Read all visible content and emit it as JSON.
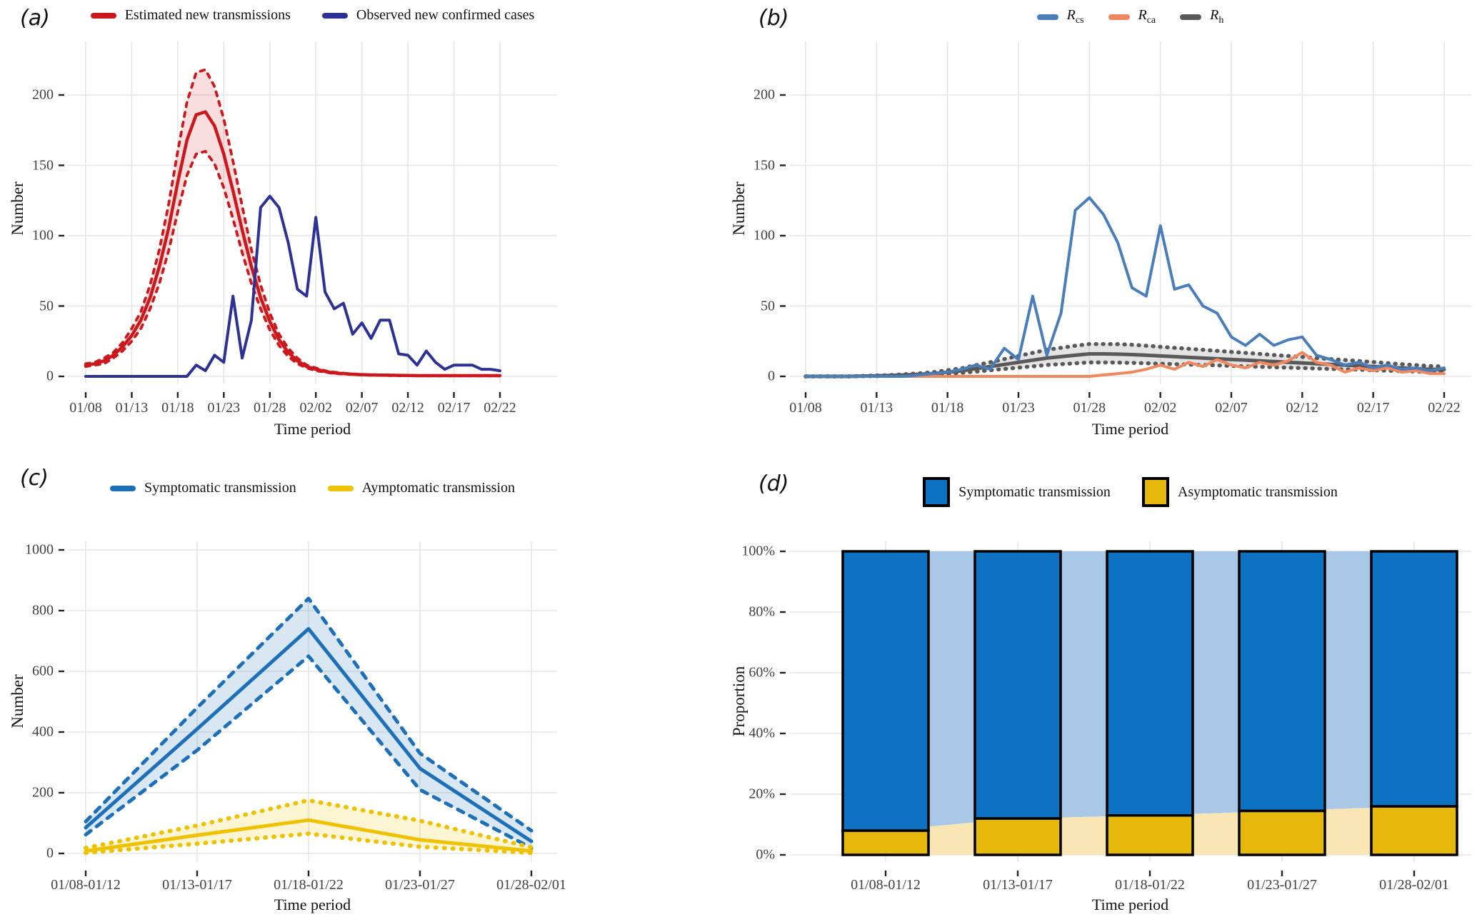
{
  "figure": {
    "background": "#ffffff",
    "grid_color": "#e6e6e6",
    "tick_color": "#222222"
  },
  "chart_data": [
    {
      "id": "a",
      "panel_label": "(a)",
      "type": "line",
      "xlabel": "Time period",
      "ylabel": "Number",
      "grid": true,
      "legend_position": "top-center",
      "n_points": 46,
      "xtick_labels": [
        "01/08",
        "01/13",
        "01/18",
        "01/23",
        "01/28",
        "02/02",
        "02/07",
        "02/12",
        "02/17",
        "02/22"
      ],
      "ytick_labels": [
        "0",
        "50",
        "100",
        "150",
        "200"
      ],
      "ytick_values": [
        0,
        50,
        100,
        150,
        200
      ],
      "ylim": [
        0,
        230
      ],
      "legend": [
        {
          "label": "Estimated new transmissions",
          "color": "#CB181D"
        },
        {
          "label": "Observed new confirmed cases",
          "color": "#2D3194"
        }
      ],
      "bands": [
        {
          "upper": 1,
          "lower": 2,
          "fill": "rgba(203,24,29,0.14)"
        }
      ],
      "series": [
        {
          "name": "Estimated new transmissions (mean)",
          "style": "solid",
          "color": "#CB181D",
          "values": [
            8,
            9,
            11,
            15,
            21,
            29,
            40,
            56,
            78,
            105,
            138,
            168,
            186,
            188,
            178,
            158,
            132,
            104,
            78,
            56,
            39,
            26,
            17,
            11,
            7,
            5,
            3.5,
            2.5,
            2,
            1.5,
            1.2,
            1,
            0.9,
            0.8,
            0.7,
            0.6,
            0.5,
            0.5,
            0.5,
            0.5,
            0.5,
            0.5,
            0.5,
            0.5,
            0.5,
            0.5
          ]
        },
        {
          "name": "Estimated CI upper",
          "style": "dashed",
          "color": "#CB181D",
          "values": [
            9,
            10,
            13,
            17,
            24,
            34,
            46,
            65,
            90,
            122,
            160,
            195,
            216,
            218,
            206,
            183,
            153,
            121,
            90,
            65,
            45,
            30,
            20,
            13,
            8,
            6,
            4,
            3,
            2.3,
            1.7,
            1.4,
            1.2,
            1,
            0.9,
            0.8,
            0.7,
            0.6,
            0.6,
            0.6,
            0.6,
            0.6,
            0.6,
            0.6,
            0.6,
            0.6,
            0.6
          ]
        },
        {
          "name": "Estimated CI lower",
          "style": "dashed",
          "color": "#CB181D",
          "values": [
            7,
            8,
            9,
            13,
            18,
            25,
            34,
            48,
            66,
            89,
            117,
            143,
            158,
            160,
            151,
            134,
            112,
            88,
            66,
            48,
            33,
            22,
            14,
            9,
            6,
            4,
            3,
            2,
            1.7,
            1.3,
            1,
            0.8,
            0.7,
            0.6,
            0.5,
            0.5,
            0.4,
            0.4,
            0.4,
            0.4,
            0.4,
            0.4,
            0.4,
            0.4,
            0.4,
            0.4
          ]
        },
        {
          "name": "Observed new confirmed cases",
          "style": "solid",
          "color": "#2D3194",
          "values": [
            0,
            0,
            0,
            0,
            0,
            0,
            0,
            0,
            0,
            0,
            0,
            0,
            8,
            4,
            15,
            10,
            57,
            13,
            40,
            120,
            128,
            120,
            95,
            62,
            57,
            113,
            60,
            48,
            52,
            30,
            38,
            27,
            40,
            40,
            16,
            15,
            8,
            18,
            10,
            5,
            8,
            8,
            8,
            5,
            5,
            4
          ]
        }
      ]
    },
    {
      "id": "b",
      "panel_label": "(b)",
      "type": "line",
      "xlabel": "Time period",
      "ylabel": "Number",
      "grid": true,
      "legend_position": "top-center",
      "n_points": 46,
      "xtick_labels": [
        "01/08",
        "01/13",
        "01/18",
        "01/23",
        "01/28",
        "02/02",
        "02/07",
        "02/12",
        "02/17",
        "02/22"
      ],
      "ytick_labels": [
        "0",
        "50",
        "100",
        "150",
        "200"
      ],
      "ytick_values": [
        0,
        50,
        100,
        150,
        200
      ],
      "ylim": [
        0,
        230
      ],
      "legend": [
        {
          "label_main": "R",
          "label_sub": "cs",
          "color": "#4A7EBB"
        },
        {
          "label_main": "R",
          "label_sub": "ca",
          "color": "#F0875F"
        },
        {
          "label_main": "R",
          "label_sub": "h",
          "color": "#595959"
        }
      ],
      "bands": [
        {
          "upper": 3,
          "lower": 4,
          "fill": "rgba(90,90,90,0.16)"
        }
      ],
      "series": [
        {
          "name": "Rcs",
          "style": "solid",
          "color": "#4A7EBB",
          "values": [
            0,
            0,
            0,
            0,
            0,
            0,
            0,
            0,
            1,
            2,
            3,
            5,
            8,
            5,
            20,
            12,
            57,
            15,
            45,
            118,
            127,
            115,
            95,
            63,
            57,
            107,
            62,
            65,
            50,
            45,
            28,
            22,
            30,
            22,
            26,
            28,
            15,
            12,
            8,
            10,
            6,
            8,
            5,
            6,
            4,
            6
          ]
        },
        {
          "name": "Rca",
          "style": "solid",
          "color": "#F0875F",
          "values": [
            0,
            0,
            0,
            0,
            0,
            0,
            0,
            0,
            0,
            0,
            0,
            0,
            0,
            0,
            0,
            0,
            0,
            0,
            0,
            0,
            0,
            1,
            2,
            3,
            5,
            8,
            5,
            10,
            7,
            12,
            8,
            6,
            10,
            8,
            11,
            17,
            10,
            8,
            3,
            6,
            4,
            6,
            3,
            4,
            2,
            2
          ]
        },
        {
          "name": "Rh",
          "style": "solid",
          "color": "#595959",
          "values": [
            0,
            0,
            0,
            0,
            0.2,
            0.4,
            0.6,
            1,
            1.5,
            2,
            3,
            4,
            5.5,
            7,
            8.5,
            10,
            11.5,
            13,
            14,
            15,
            16,
            16,
            15.8,
            15.5,
            15,
            14.5,
            14,
            13.5,
            13,
            12.5,
            12,
            11.5,
            11,
            10.5,
            10,
            9.5,
            9,
            8.5,
            8,
            7.5,
            7,
            6.5,
            6,
            5.5,
            5,
            4.8
          ]
        },
        {
          "name": "Rh CI upper",
          "style": "dotted",
          "color": "#595959",
          "values": [
            0,
            0,
            0,
            0,
            0.3,
            0.6,
            0.9,
            1.5,
            2.2,
            3,
            4.4,
            5.8,
            8,
            10,
            12.3,
            14.5,
            16.7,
            18.9,
            20.3,
            21.8,
            23,
            23,
            22.9,
            22.5,
            21.8,
            21,
            20.3,
            19.6,
            18.9,
            18.1,
            17.4,
            16.7,
            16,
            15.2,
            14.5,
            13.8,
            13,
            12.3,
            11.6,
            10.9,
            10.2,
            9.4,
            8.7,
            8,
            7.3,
            7
          ]
        },
        {
          "name": "Rh CI lower",
          "style": "dotted",
          "color": "#595959",
          "values": [
            0,
            0,
            0,
            0,
            0.1,
            0.2,
            0.4,
            0.6,
            0.9,
            1.2,
            1.9,
            2.5,
            3.4,
            4.3,
            5.3,
            6.2,
            7.1,
            8.1,
            8.7,
            9.3,
            9.9,
            9.9,
            9.8,
            9.6,
            9.3,
            9,
            8.7,
            8.4,
            8.1,
            7.8,
            7.4,
            7.1,
            6.8,
            6.5,
            6.2,
            5.9,
            5.6,
            5.3,
            5,
            4.7,
            4.3,
            4,
            3.7,
            3.4,
            3.1,
            3
          ]
        }
      ]
    },
    {
      "id": "c",
      "panel_label": "(c)",
      "type": "line",
      "xlabel": "Time period",
      "ylabel": "Number",
      "grid": true,
      "legend_position": "top-center",
      "n_points": 5,
      "xtick_labels": [
        "01/08-01/12",
        "01/13-01/17",
        "01/18-01/22",
        "01/23-01/27",
        "01/28-02/01"
      ],
      "ytick_labels": [
        "0",
        "200",
        "400",
        "600",
        "800",
        "1000"
      ],
      "ytick_values": [
        0,
        200,
        400,
        600,
        800,
        1000
      ],
      "ylim": [
        0,
        1030
      ],
      "legend": [
        {
          "label": "Symptomatic transmission",
          "color": "#1D70B8"
        },
        {
          "label": "Aymptomatic transmission",
          "color": "#EEC200"
        }
      ],
      "bands": [
        {
          "upper": 1,
          "lower": 2,
          "fill": "rgba(31,111,181,0.17)"
        },
        {
          "upper": 4,
          "lower": 5,
          "fill": "rgba(238,194,0,0.17)"
        }
      ],
      "series": [
        {
          "name": "Symptomatic transmission (mean)",
          "style": "solid",
          "color": "#1D70B8",
          "values": [
            85,
            410,
            740,
            280,
            40
          ]
        },
        {
          "name": "Symptomatic CI upper",
          "style": "dashed",
          "color": "#1D70B8",
          "values": [
            105,
            480,
            840,
            330,
            75
          ]
        },
        {
          "name": "Symptomatic CI lower",
          "style": "dashed",
          "color": "#1D70B8",
          "values": [
            62,
            340,
            650,
            210,
            18
          ]
        },
        {
          "name": "Aymptomatic transmission (mean)",
          "style": "solid",
          "color": "#EEC200",
          "values": [
            8,
            60,
            110,
            45,
            8
          ]
        },
        {
          "name": "Aymptomatic CI upper",
          "style": "dotted",
          "color": "#EEC200",
          "values": [
            18,
            92,
            175,
            108,
            20
          ]
        },
        {
          "name": "Aymptomatic CI lower",
          "style": "dotted",
          "color": "#EEC200",
          "values": [
            2,
            32,
            65,
            22,
            2
          ]
        }
      ]
    },
    {
      "id": "d",
      "panel_label": "(d)",
      "type": "bar",
      "xlabel": "Time period",
      "ylabel": "Proportion",
      "grid": true,
      "legend_position": "top-center",
      "stacked": true,
      "categories": [
        "01/08-01/12",
        "01/13-01/17",
        "01/18-01/22",
        "01/23-01/27",
        "01/28-02/01"
      ],
      "xtick_labels": [
        "01/08-01/12",
        "01/13-01/17",
        "01/18-01/22",
        "01/23-01/27",
        "01/28-02/01"
      ],
      "ytick_labels": [
        "0%",
        "20%",
        "40%",
        "60%",
        "80%",
        "100%"
      ],
      "ytick_values": [
        0,
        20,
        40,
        60,
        80,
        100
      ],
      "ylim": [
        0,
        100
      ],
      "legend": [
        {
          "label": "Symptomatic transmission",
          "color": "#0D72C1"
        },
        {
          "label": "Asymptomatic transmission",
          "color": "#E7B80C"
        }
      ],
      "series": [
        {
          "name": "Symptomatic transmission",
          "color": "#0D72C1",
          "area_color": "#A9C7E6",
          "values": [
            92,
            88,
            87,
            85.5,
            84
          ]
        },
        {
          "name": "Asymptomatic transmission",
          "color": "#E7B80C",
          "area_color": "#FAE6B4",
          "values": [
            8,
            12,
            13,
            14.5,
            16
          ]
        }
      ]
    }
  ]
}
